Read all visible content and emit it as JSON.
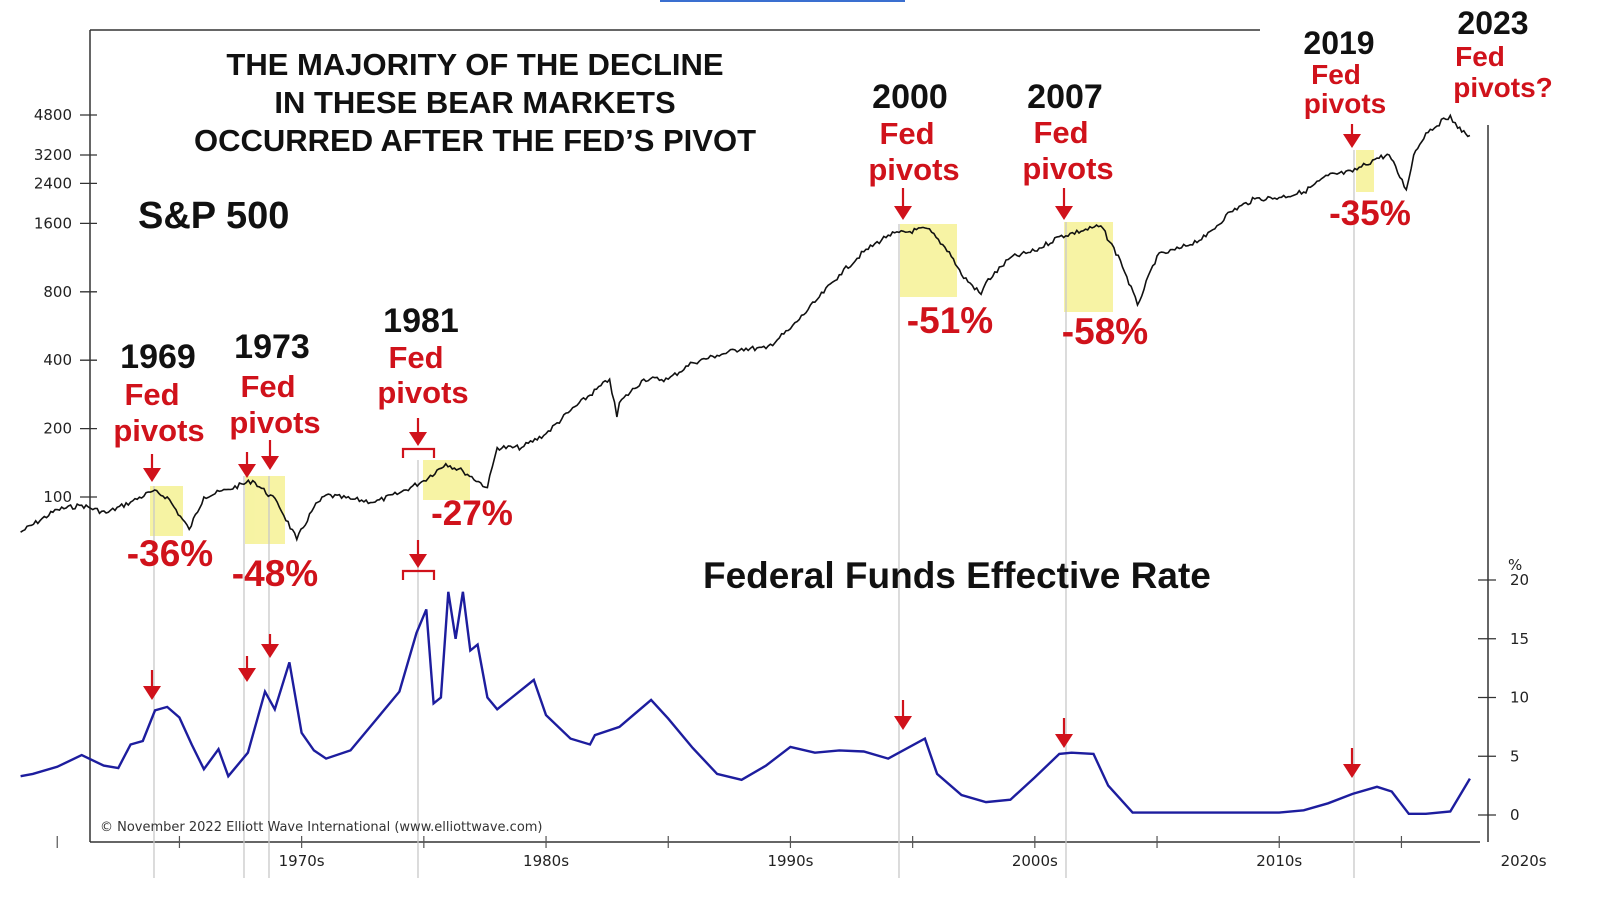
{
  "chart_data": [
    {
      "type": "line",
      "name": "sp500",
      "label": "S&P 500",
      "y_scale": "log",
      "y_ticks": [
        100,
        200,
        400,
        800,
        1600,
        2400,
        3200,
        4800
      ],
      "x_ticks": [
        "1970s",
        "1980s",
        "1990s",
        "2000s",
        "2010s",
        "2020s"
      ],
      "x": [
        1963.5,
        1965,
        1966,
        1967,
        1968,
        1968.9,
        1969.5,
        1970.4,
        1971,
        1972,
        1973,
        1974,
        1974.8,
        1975.5,
        1976,
        1977,
        1978,
        1979,
        1980,
        1980.9,
        1981.6,
        1982.6,
        1983,
        1984,
        1985,
        1986,
        1987.6,
        1987.9,
        1988,
        1989,
        1990,
        1991,
        1992,
        1993,
        1994,
        1995,
        1996,
        1997,
        1998,
        1999,
        2000.6,
        2001.5,
        2002,
        2002.8,
        2003,
        2004,
        2005,
        2006,
        2007.7,
        2008.5,
        2009.2,
        2010,
        2011,
        2012,
        2013,
        2014,
        2015,
        2016,
        2017,
        2018,
        2019,
        2019.5,
        2020.2,
        2020.5,
        2021,
        2022,
        2022.3,
        2022.8
      ],
      "y": [
        70,
        88,
        92,
        85,
        95,
        106,
        100,
        72,
        100,
        108,
        118,
        95,
        65,
        90,
        102,
        98,
        95,
        104,
        118,
        140,
        130,
        110,
        165,
        165,
        190,
        240,
        330,
        225,
        260,
        330,
        330,
        390,
        420,
        450,
        450,
        550,
        720,
        950,
        1200,
        1420,
        1520,
        1200,
        950,
        780,
        880,
        1130,
        1210,
        1400,
        1560,
        1100,
        700,
        1150,
        1250,
        1400,
        1800,
        2050,
        2080,
        2200,
        2600,
        2700,
        3100,
        3200,
        2250,
        3200,
        4000,
        4780,
        4200,
        3900
      ]
    },
    {
      "type": "line",
      "name": "fed-funds",
      "label": "Federal Funds Effective Rate",
      "y_unit": "%",
      "ylim": [
        0,
        20
      ],
      "y_ticks": [
        0,
        5,
        10,
        15,
        20
      ],
      "x": [
        1963.5,
        1964,
        1965,
        1966,
        1966.9,
        1967.5,
        1968,
        1968.5,
        1969,
        1969.5,
        1970,
        1970.5,
        1971,
        1971.6,
        1972,
        1972.8,
        1973.5,
        1973.9,
        1974.5,
        1975,
        1975.5,
        1976,
        1977,
        1978,
        1979,
        1979.7,
        1980.1,
        1980.4,
        1980.7,
        1981,
        1981.3,
        1981.6,
        1981.9,
        1982.2,
        1982.6,
        1983,
        1984.5,
        1985,
        1986,
        1986.8,
        1987,
        1988,
        1989.3,
        1990,
        1991,
        1992,
        1993,
        1994,
        1995,
        1996,
        1997,
        1998,
        1999,
        2000.5,
        2001,
        2002,
        2003,
        2004,
        2005,
        2006,
        2006.5,
        2007.4,
        2008,
        2009,
        2010,
        2015,
        2016,
        2017,
        2018,
        2019,
        2019.6,
        2020.3,
        2021,
        2022,
        2022.8
      ],
      "y": [
        3.3,
        3.5,
        4.1,
        5.1,
        4.2,
        4.0,
        6.0,
        6.3,
        8.9,
        9.2,
        8.3,
        6.0,
        3.9,
        5.6,
        3.3,
        5.3,
        10.5,
        9.0,
        13.0,
        7.0,
        5.5,
        4.8,
        5.5,
        8.0,
        10.5,
        15.5,
        17.5,
        9.5,
        10.0,
        19.0,
        15.0,
        19.0,
        14.0,
        14.5,
        10.0,
        9.0,
        11.5,
        8.5,
        6.5,
        6.0,
        6.8,
        7.5,
        9.8,
        8.2,
        5.7,
        3.5,
        3.0,
        4.2,
        5.8,
        5.3,
        5.5,
        5.4,
        4.8,
        6.5,
        3.5,
        1.7,
        1.1,
        1.3,
        3.2,
        5.2,
        5.3,
        5.2,
        2.5,
        0.2,
        0.2,
        0.2,
        0.4,
        1.0,
        1.8,
        2.4,
        2.0,
        0.1,
        0.1,
        0.3,
        3.1
      ]
    }
  ],
  "header": {
    "title_lines": [
      "THE MAJORITY OF THE DECLINE",
      "IN THESE BEAR MARKETS",
      "OCCURRED AFTER THE FED’S PIVOT"
    ],
    "sp_label": "S&P 500",
    "ff_label": "Federal Funds Effective Rate",
    "pct_label": "%",
    "copyright": "© November 2022 Elliott Wave International (www.elliottwave.com)"
  },
  "pivots": [
    {
      "year": "1969",
      "line1": "Fed",
      "line2": "pivots",
      "decline": "-36%"
    },
    {
      "year": "1973",
      "line1": "Fed",
      "line2": "pivots",
      "decline": "-48%"
    },
    {
      "year": "1981",
      "line1": "Fed",
      "line2": "pivots",
      "decline": "-27%"
    },
    {
      "year": "2000",
      "line1": "Fed",
      "line2": "pivots",
      "decline": "-51%"
    },
    {
      "year": "2007",
      "line1": "Fed",
      "line2": "pivots",
      "decline": "-58%"
    },
    {
      "year": "2019",
      "line1": "Fed",
      "line2": "pivots",
      "decline": "-35%"
    },
    {
      "year": "2023",
      "line1": "Fed",
      "line2": "pivots?",
      "decline": ""
    }
  ],
  "colors": {
    "sp_line": "#111111",
    "ff_line": "#1d1d9e",
    "highlight": "#f6f29a",
    "annotation": "#d0121b"
  }
}
